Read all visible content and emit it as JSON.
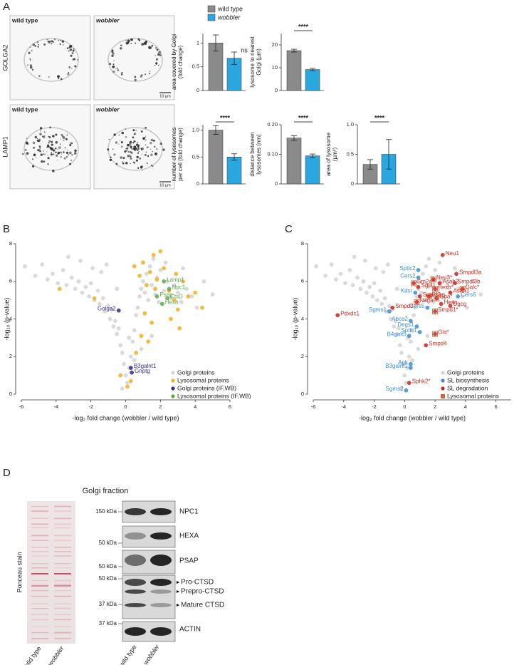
{
  "figure": {
    "panel_letters": [
      "A",
      "B",
      "C",
      "D"
    ],
    "panel_a": {
      "columns": [
        "wild type",
        "wobbler"
      ],
      "rows": [
        "GOLGA2",
        "LAMP1"
      ],
      "scale_bar": "10 µm"
    },
    "bar_legend": [
      {
        "name": "wild type",
        "color": "#8a8a8a",
        "style": "normal"
      },
      {
        "name": "wobbler",
        "color": "#2aa7df",
        "style": "italic"
      }
    ],
    "panel_d": {
      "title": "Golgi fraction",
      "ponceau": "Ponceau stain",
      "lanes": [
        "wild type",
        "wobbler"
      ],
      "blots": [
        {
          "kda": [
            "150 kDa"
          ],
          "labels": [
            "NPC1"
          ]
        },
        {
          "kda": [
            "50 kDa"
          ],
          "labels": [
            "HEXA"
          ]
        },
        {
          "kda": [
            "50 kDa"
          ],
          "labels": [
            "PSAP"
          ]
        },
        {
          "kda": [
            "50 kDa",
            "37 kDa"
          ],
          "labels": [
            "Pro-CTSD",
            "Prepro-CTSD",
            "Mature CTSD"
          ]
        },
        {
          "kda": [
            "37 kDa"
          ],
          "labels": [
            "ACTIN"
          ]
        }
      ]
    }
  },
  "chart_data": [
    {
      "type": "bar",
      "ylabel": [
        "area covered by Golgi",
        "(fold change)"
      ],
      "values": [
        1.0,
        0.68
      ],
      "errors": [
        0.17,
        0.13
      ],
      "ylim": [
        0,
        1.2
      ],
      "yticks": [
        0,
        0.5,
        1
      ],
      "annotation": "ns",
      "annotation_line": false
    },
    {
      "type": "bar",
      "ylabel": [
        "lysosome to nearest",
        "Golgi (µm)"
      ],
      "values": [
        17.5,
        9.2
      ],
      "errors": [
        0.6,
        0.5
      ],
      "ylim": [
        0,
        25
      ],
      "yticks": [
        0,
        10,
        20
      ],
      "annotation": "****",
      "annotation_line": true
    },
    {
      "type": "bar",
      "ylabel": [
        "number of lysosomes",
        "per cell (fold change)"
      ],
      "values": [
        1.0,
        0.5
      ],
      "errors": [
        0.08,
        0.06
      ],
      "ylim": [
        0,
        1.1
      ],
      "yticks": [
        0,
        0.5,
        {
          "value": 1,
          "label": "1.0"
        }
      ],
      "annotation": "****",
      "annotation_line": true
    },
    {
      "type": "bar",
      "ylabel": [
        "distance between",
        "lysosomes (nm)"
      ],
      "values": [
        0.155,
        0.095
      ],
      "errors": [
        0.008,
        0.006
      ],
      "ylim": [
        0,
        0.2
      ],
      "yticks": [
        0,
        {
          "value": 0.1,
          "label": "0.10"
        },
        {
          "value": 0.2,
          "label": "0.20"
        }
      ],
      "annotation": "****",
      "annotation_line": true
    },
    {
      "type": "bar",
      "ylabel": [
        "area of lysosome",
        "(µm²)"
      ],
      "values": [
        0.33,
        0.5
      ],
      "errors": [
        0.08,
        0.25
      ],
      "ylim": [
        0,
        1.0
      ],
      "yticks": [
        0,
        0.5,
        {
          "value": 1,
          "label": "1.0"
        }
      ],
      "annotation": "****",
      "annotation_line": true
    },
    {
      "type": "scatter",
      "xlabel": "-log₂ fold change (wobbler / wild type)",
      "ylabel": "-log₁₀ (p-value)",
      "xlim": [
        -6,
        6
      ],
      "ylim": [
        0,
        8
      ],
      "xticks": [
        -6,
        -4,
        -2,
        0,
        2,
        4,
        6
      ],
      "yticks": [
        0,
        2,
        4,
        6,
        8
      ],
      "legend": "lower right",
      "series": [
        {
          "name": "Golgi proteins",
          "color": "#d4d4d4",
          "marker": "circle",
          "x": [
            -5.8,
            -5.2,
            -4.8,
            -4.5,
            -4.2,
            -3.9,
            -3.6,
            -3.4,
            -3.1,
            -2.9,
            -2.7,
            -2.5,
            -2.3,
            -2.1,
            -2.0,
            -1.8,
            -1.6,
            -1.5,
            -1.3,
            -1.2,
            -1.0,
            -0.9,
            -0.8,
            -0.7,
            -0.6,
            -0.5,
            -0.4,
            -0.3,
            -0.2,
            -0.1,
            0,
            0.1,
            0.2,
            0.3,
            0.4,
            0.5,
            0.6,
            0.7,
            0.8,
            0.9,
            1.0,
            1.1,
            1.2,
            1.3,
            1.4,
            1.5,
            1.6,
            1.7,
            1.8,
            1.9,
            2.0,
            2.2,
            2.4,
            2.6,
            2.8,
            3.0,
            3.2,
            3.5,
            3.8,
            4.1,
            4.5,
            5.0,
            -2.6,
            -1.9,
            -1.1,
            -0.5,
            0.2,
            0.9,
            1.5,
            2.3,
            -3.3,
            -1.4,
            -0.2,
            0.5,
            3.3
          ],
          "values": [
            6.8,
            6.3,
            6.9,
            6.1,
            6.4,
            5.9,
            6.6,
            5.8,
            6.2,
            5.6,
            6.0,
            5.4,
            5.7,
            5.2,
            5.9,
            5.0,
            5.5,
            4.8,
            5.1,
            4.4,
            4.7,
            4.0,
            4.5,
            3.6,
            3.9,
            3.2,
            3.5,
            2.6,
            2.2,
            1.6,
            1.0,
            0.6,
            1.4,
            2.0,
            2.8,
            3.4,
            4.2,
            4.6,
            5.2,
            5.6,
            6.0,
            5.4,
            6.4,
            5.0,
            6.8,
            5.8,
            7.2,
            5.3,
            6.2,
            4.9,
            6.6,
            5.5,
            6.0,
            5.1,
            5.8,
            5.4,
            4.9,
            5.6,
            5.2,
            4.6,
            6.0,
            5.3,
            7.1,
            6.7,
            6.9,
            5.6,
            3.0,
            2.4,
            3.1,
            7.0,
            7.3,
            6.5,
            0.3,
            1.8,
            6.7
          ]
        },
        {
          "name": "Lysosomal proteins",
          "color": "#f0b020",
          "marker": "circle",
          "x": [
            0.5,
            0.8,
            1.0,
            1.2,
            1.4,
            1.6,
            1.8,
            2.0,
            2.2,
            2.5,
            2.8,
            3.0,
            3.3,
            3.6,
            4.0,
            4.4,
            1.1,
            1.5,
            0.9,
            2.6,
            3.1,
            -1.8,
            -3.8,
            -0.3,
            0.1,
            0.6,
            1.3,
            2.9,
            1.7,
            0.3
          ],
          "values": [
            6.8,
            6.3,
            7.0,
            5.8,
            6.5,
            7.4,
            6.1,
            7.6,
            6.7,
            5.5,
            5.0,
            4.5,
            6.0,
            5.2,
            5.4,
            4.6,
            4.3,
            3.8,
            3.1,
            4.0,
            3.5,
            5.1,
            5.6,
            1.0,
            0.4,
            2.2,
            2.8,
            6.4,
            5.6,
            0.7
          ]
        },
        {
          "name": "Golgi proteins (IF,WB)",
          "color": "#3b2a80",
          "marker": "circle",
          "x": [
            -0.4,
            0.3,
            0.35
          ],
          "values": [
            4.45,
            1.4,
            1.15
          ],
          "labels": [
            "Golga2",
            "B3galnt1",
            "Gnptg"
          ]
        },
        {
          "name": "Lysosomal proteins (IF,WB)",
          "color": "#5aab4a",
          "marker": "circle",
          "x": [
            2.2,
            2.5,
            1.8,
            2.4,
            2.1
          ],
          "values": [
            6.0,
            5.6,
            5.2,
            5.1,
            4.8
          ],
          "labels": [
            "Lamp1",
            "Npc1",
            "Psap",
            "CtsD",
            "Hexa"
          ]
        }
      ]
    },
    {
      "type": "scatter",
      "xlabel": "-log₂ fold change (wobbler / wild type)",
      "ylabel": "-log₁₀ (p-value)",
      "xlim": [
        -6,
        7
      ],
      "ylim": [
        0,
        8
      ],
      "xticks": [
        -6,
        -4,
        -2,
        0,
        2,
        4,
        6
      ],
      "yticks": [
        0,
        2,
        4,
        6,
        8
      ],
      "legend": "lower right",
      "series": [
        {
          "name": "Golgi proteins",
          "color": "#d4d4d4",
          "marker": "circle",
          "x": [
            -5.8,
            -5.2,
            -4.8,
            -4.5,
            -4.2,
            -3.9,
            -3.6,
            -3.4,
            -3.1,
            -2.9,
            -2.7,
            -2.5,
            -2.3,
            -2.1,
            -2.0,
            -1.8,
            -1.6,
            -1.5,
            -1.3,
            -1.2,
            -1.0,
            -0.9,
            -0.8,
            -0.7,
            -0.6,
            -0.5,
            -0.4,
            -0.3,
            -0.2,
            -0.1,
            0,
            0.1,
            0.2,
            0.3,
            0.4,
            0.5,
            0.6,
            0.7,
            0.8,
            0.9,
            1.0,
            1.1,
            1.2,
            1.3,
            1.4,
            1.5,
            1.6,
            1.7,
            1.8,
            1.9,
            2.0,
            2.2,
            2.4,
            2.6,
            2.8,
            3.0,
            3.2,
            3.5,
            3.8,
            4.1,
            4.5,
            5.0,
            -2.6,
            -1.9,
            -1.1,
            -0.5,
            0.2,
            0.9,
            1.5,
            2.3,
            -3.3,
            -1.4,
            -0.2,
            0.5,
            3.3
          ],
          "values": [
            6.8,
            6.3,
            6.9,
            6.1,
            6.4,
            5.9,
            6.6,
            5.8,
            6.2,
            5.6,
            6.0,
            5.4,
            5.7,
            5.2,
            5.9,
            5.0,
            5.5,
            4.8,
            5.1,
            4.4,
            4.7,
            4.0,
            4.5,
            3.6,
            3.9,
            3.2,
            3.5,
            2.6,
            2.2,
            1.6,
            1.0,
            0.6,
            1.4,
            2.0,
            2.8,
            3.4,
            4.2,
            4.6,
            5.2,
            5.6,
            6.0,
            5.4,
            6.4,
            5.0,
            6.8,
            5.8,
            7.2,
            5.3,
            6.2,
            4.9,
            6.6,
            5.5,
            6.0,
            5.1,
            5.8,
            5.4,
            4.9,
            5.6,
            5.2,
            4.6,
            6.0,
            5.3,
            7.1,
            6.7,
            6.9,
            5.6,
            3.0,
            2.4,
            3.1,
            7.0,
            7.3,
            6.5,
            0.3,
            1.8,
            6.7
          ]
        },
        {
          "name": "SL biosynthesis",
          "color": "#3a8fd0",
          "marker": "circle",
          "x": [
            0.9,
            0.9,
            0.7,
            3.5,
            1.5,
            -1.0,
            0.4,
            0.8,
            1.0,
            0.3,
            0.4,
            0.4,
            0.1
          ],
          "values": [
            6.6,
            6.2,
            5.4,
            5.2,
            4.6,
            4.4,
            3.9,
            3.6,
            3.3,
            3.1,
            1.6,
            1.4,
            0.2
          ],
          "labels": [
            "Sptlc2",
            "Cers2",
            "Kdsr",
            "Cers6",
            "Cers5",
            "Sgms1",
            "Abca2",
            "Degs1",
            "Sptlc1",
            "B4galt5",
            "Agk",
            "B3galnt1",
            "Sgms2"
          ]
        },
        {
          "name": "SL degradation",
          "color": "#c8281e",
          "marker": "circle",
          "x": [
            2.5,
            3.4,
            1.9,
            3.3,
            0.6,
            2.3,
            0.9,
            2.0,
            3.8,
            3.0,
            1.0,
            1.6,
            2.1,
            0.8,
            2.4,
            3.0,
            -0.8,
            2.0,
            -4.4,
            2.0,
            1.4,
            0.3
          ],
          "values": [
            7.4,
            6.4,
            6.1,
            5.9,
            5.9,
            5.9,
            5.7,
            5.6,
            5.6,
            5.4,
            5.2,
            5.2,
            5.1,
            4.9,
            4.8,
            4.7,
            4.6,
            4.4,
            4.2,
            3.2,
            2.6,
            0.6
          ],
          "labels": [
            "Neu1",
            "Smpdl3a",
            "Neu3*",
            "Smpdl3b",
            "Gm2a*",
            "Asah2",
            "Sgpl1",
            "Hexb*",
            "Galc*",
            "Asah1",
            "Smpd2",
            "Psap",
            "Gba*",
            "Naga",
            "Hexa",
            "Ugcg",
            "Smpd3",
            "Smpd1*",
            "Pdxdc1",
            "Gla*",
            "Smpd4",
            "Sphk2*"
          ]
        },
        {
          "name": "Lysosomal proteins",
          "color": "#e06030",
          "marker": "square",
          "x": [
            0.6,
            1.9,
            0.8,
            1.6,
            2.1,
            2.0,
            3.8,
            2.0,
            2.0
          ],
          "values": [
            5.9,
            6.1,
            4.9,
            5.2,
            5.1,
            3.2,
            5.6,
            4.4,
            5.6
          ]
        }
      ]
    }
  ]
}
